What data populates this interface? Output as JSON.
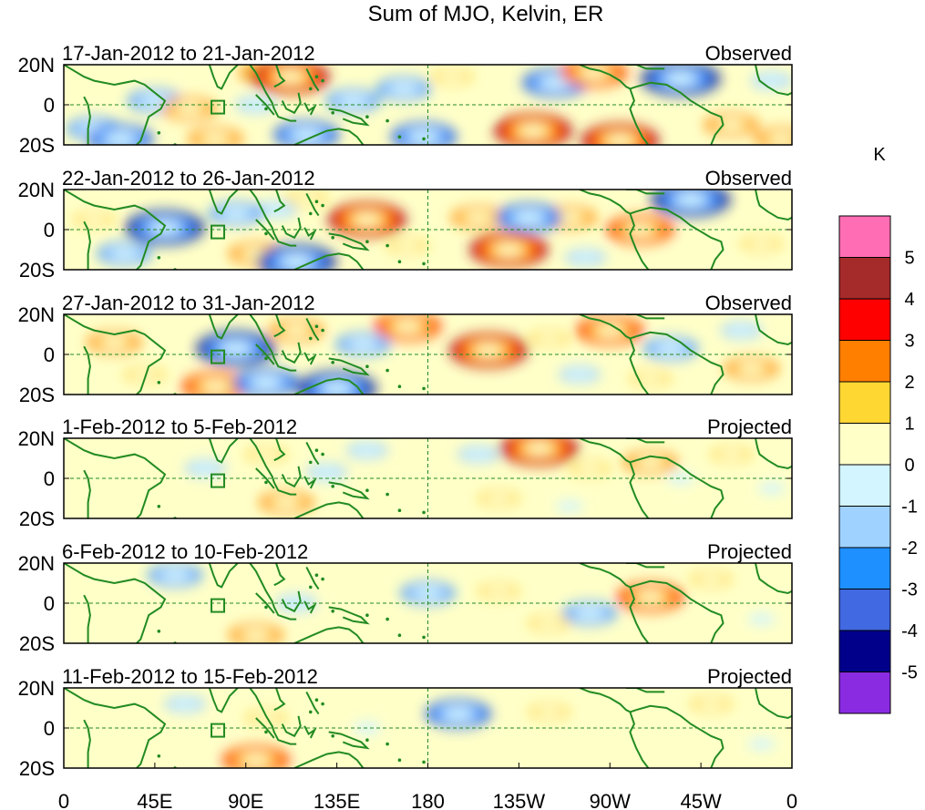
{
  "chart_data": {
    "type": "heatmap",
    "title": "Sum of MJO, Kelvin, ER",
    "units": "K",
    "lat_ticks": [
      "20N",
      "0",
      "20S"
    ],
    "lon_ticks": [
      "0",
      "45E",
      "90E",
      "135E",
      "180",
      "135W",
      "90W",
      "45W",
      "0"
    ],
    "lon_range": [
      0,
      360
    ],
    "lat_range": [
      -20,
      20
    ],
    "colorbar": {
      "labels": [
        "5",
        "4",
        "3",
        "2",
        "1",
        "0",
        "-1",
        "-2",
        "-3",
        "-4",
        "-5"
      ],
      "colors": [
        "#ff6eb4",
        "#a52a2a",
        "#ff0000",
        "#ff7f00",
        "#ffd733",
        "#ffffc8",
        "#d2f5ff",
        "#a0d2ff",
        "#1e90ff",
        "#4169e1",
        "#00008b",
        "#8a2be2"
      ]
    },
    "panels": [
      {
        "dates": "17-Jan-2012 to 21-Jan-2012",
        "status": "Observed",
        "blobs": [
          {
            "lon": 45,
            "lat": 2,
            "value": -3
          },
          {
            "lon": 15,
            "lat": -12,
            "value": -3
          },
          {
            "lon": 28,
            "lat": -17,
            "value": -4
          },
          {
            "lon": 100,
            "lat": 16,
            "value": 3
          },
          {
            "lon": 112,
            "lat": 14,
            "value": 5
          },
          {
            "lon": 62,
            "lat": -2,
            "value": 3
          },
          {
            "lon": 95,
            "lat": 0,
            "value": -2
          },
          {
            "lon": 120,
            "lat": -15,
            "value": -4
          },
          {
            "lon": 75,
            "lat": -17,
            "value": 3
          },
          {
            "lon": 143,
            "lat": 2,
            "value": -3
          },
          {
            "lon": 168,
            "lat": 8,
            "value": -3
          },
          {
            "lon": 178,
            "lat": -16,
            "value": -4
          },
          {
            "lon": 192,
            "lat": 14,
            "value": 2
          },
          {
            "lon": 232,
            "lat": -13,
            "value": 5
          },
          {
            "lon": 275,
            "lat": -18,
            "value": 5
          },
          {
            "lon": 243,
            "lat": 11,
            "value": -4
          },
          {
            "lon": 262,
            "lat": 16,
            "value": 4
          },
          {
            "lon": 305,
            "lat": 13,
            "value": -5
          },
          {
            "lon": 330,
            "lat": -10,
            "value": 3
          },
          {
            "lon": 350,
            "lat": 12,
            "value": -2
          },
          {
            "lon": 355,
            "lat": -17,
            "value": 3
          },
          {
            "lon": 205,
            "lat": -3,
            "value": 1
          }
        ]
      },
      {
        "dates": "22-Jan-2012 to 26-Jan-2012",
        "status": "Observed",
        "blobs": [
          {
            "lon": 15,
            "lat": 5,
            "value": 2
          },
          {
            "lon": 50,
            "lat": 1,
            "value": -5
          },
          {
            "lon": 85,
            "lat": 8,
            "value": -3
          },
          {
            "lon": 95,
            "lat": -12,
            "value": 3
          },
          {
            "lon": 115,
            "lat": -16,
            "value": -5
          },
          {
            "lon": 105,
            "lat": 10,
            "value": -2
          },
          {
            "lon": 150,
            "lat": 5,
            "value": 5
          },
          {
            "lon": 120,
            "lat": 16,
            "value": 2
          },
          {
            "lon": 170,
            "lat": -8,
            "value": 2
          },
          {
            "lon": 205,
            "lat": 6,
            "value": 3
          },
          {
            "lon": 220,
            "lat": -10,
            "value": 5
          },
          {
            "lon": 230,
            "lat": 6,
            "value": -4
          },
          {
            "lon": 250,
            "lat": 6,
            "value": 3
          },
          {
            "lon": 285,
            "lat": 0,
            "value": 4
          },
          {
            "lon": 310,
            "lat": 15,
            "value": -5
          },
          {
            "lon": 345,
            "lat": -7,
            "value": 2
          },
          {
            "lon": 258,
            "lat": -14,
            "value": -2
          },
          {
            "lon": 30,
            "lat": -12,
            "value": -3
          }
        ]
      },
      {
        "dates": "27-Jan-2012 to 31-Jan-2012",
        "status": "Observed",
        "blobs": [
          {
            "lon": 25,
            "lat": 6,
            "value": 3
          },
          {
            "lon": 40,
            "lat": -10,
            "value": 2
          },
          {
            "lon": 85,
            "lat": 3,
            "value": -5
          },
          {
            "lon": 75,
            "lat": -16,
            "value": 4
          },
          {
            "lon": 100,
            "lat": -14,
            "value": -4
          },
          {
            "lon": 135,
            "lat": -17,
            "value": -5
          },
          {
            "lon": 115,
            "lat": 12,
            "value": 3
          },
          {
            "lon": 170,
            "lat": 14,
            "value": 4
          },
          {
            "lon": 148,
            "lat": 5,
            "value": -3
          },
          {
            "lon": 210,
            "lat": 2,
            "value": 5
          },
          {
            "lon": 240,
            "lat": 8,
            "value": 2
          },
          {
            "lon": 270,
            "lat": 12,
            "value": 4
          },
          {
            "lon": 255,
            "lat": -10,
            "value": -2
          },
          {
            "lon": 300,
            "lat": 3,
            "value": -3
          },
          {
            "lon": 335,
            "lat": 12,
            "value": -2
          },
          {
            "lon": 340,
            "lat": -7,
            "value": 3
          },
          {
            "lon": 290,
            "lat": -12,
            "value": 2
          }
        ]
      },
      {
        "dates": "1-Feb-2012 to 5-Feb-2012",
        "status": "Projected",
        "blobs": [
          {
            "lon": 30,
            "lat": 2,
            "value": 1
          },
          {
            "lon": 70,
            "lat": 5,
            "value": -2
          },
          {
            "lon": 100,
            "lat": 12,
            "value": 2
          },
          {
            "lon": 110,
            "lat": -12,
            "value": 3
          },
          {
            "lon": 130,
            "lat": 3,
            "value": -2
          },
          {
            "lon": 150,
            "lat": 14,
            "value": -2
          },
          {
            "lon": 180,
            "lat": 4,
            "value": 1
          },
          {
            "lon": 205,
            "lat": 12,
            "value": -2
          },
          {
            "lon": 235,
            "lat": 15,
            "value": 5
          },
          {
            "lon": 215,
            "lat": -10,
            "value": 2
          },
          {
            "lon": 260,
            "lat": 5,
            "value": 2
          },
          {
            "lon": 290,
            "lat": 8,
            "value": 3
          },
          {
            "lon": 305,
            "lat": 0,
            "value": -1
          },
          {
            "lon": 330,
            "lat": 12,
            "value": 2
          },
          {
            "lon": 350,
            "lat": -5,
            "value": -1
          },
          {
            "lon": 250,
            "lat": -14,
            "value": -1
          }
        ]
      },
      {
        "dates": "6-Feb-2012 to 10-Feb-2012",
        "status": "Projected",
        "blobs": [
          {
            "lon": 30,
            "lat": -10,
            "value": 1
          },
          {
            "lon": 55,
            "lat": 14,
            "value": -3
          },
          {
            "lon": 95,
            "lat": -16,
            "value": 3
          },
          {
            "lon": 85,
            "lat": 10,
            "value": 1
          },
          {
            "lon": 115,
            "lat": 0,
            "value": -2
          },
          {
            "lon": 150,
            "lat": -2,
            "value": 1
          },
          {
            "lon": 180,
            "lat": 5,
            "value": -3
          },
          {
            "lon": 215,
            "lat": 6,
            "value": 2
          },
          {
            "lon": 240,
            "lat": -10,
            "value": 2
          },
          {
            "lon": 260,
            "lat": -5,
            "value": -3
          },
          {
            "lon": 290,
            "lat": 3,
            "value": 4
          },
          {
            "lon": 320,
            "lat": 12,
            "value": 2
          },
          {
            "lon": 345,
            "lat": -8,
            "value": -1
          }
        ]
      },
      {
        "dates": "11-Feb-2012 to 15-Feb-2012",
        "status": "Projected",
        "blobs": [
          {
            "lon": 40,
            "lat": 0,
            "value": 1
          },
          {
            "lon": 60,
            "lat": 12,
            "value": -2
          },
          {
            "lon": 95,
            "lat": -16,
            "value": 4
          },
          {
            "lon": 100,
            "lat": 5,
            "value": 2
          },
          {
            "lon": 150,
            "lat": 0,
            "value": -1
          },
          {
            "lon": 195,
            "lat": 7,
            "value": -4
          },
          {
            "lon": 240,
            "lat": 8,
            "value": 2
          },
          {
            "lon": 250,
            "lat": -10,
            "value": 1
          },
          {
            "lon": 285,
            "lat": -4,
            "value": 1
          },
          {
            "lon": 320,
            "lat": 12,
            "value": 2
          },
          {
            "lon": 345,
            "lat": -8,
            "value": -1
          }
        ]
      }
    ]
  }
}
